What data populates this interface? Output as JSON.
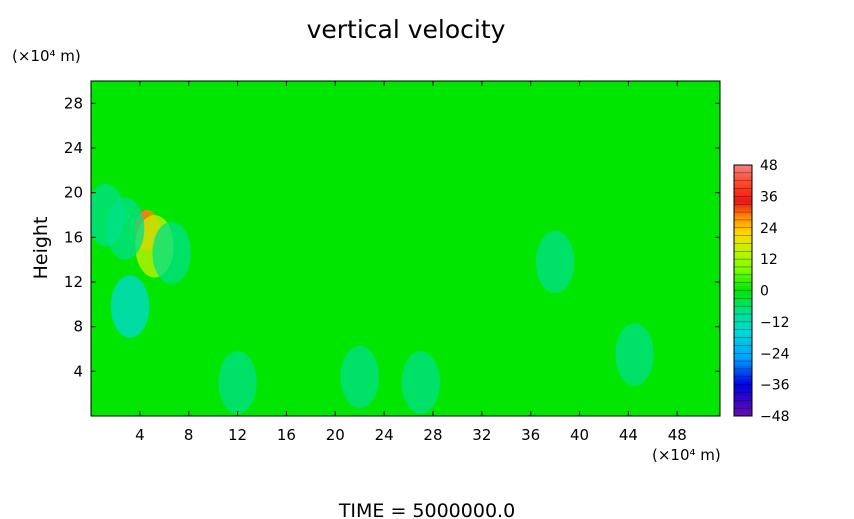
{
  "chart_data": {
    "type": "heatmap",
    "title": "vertical velocity",
    "ylabel": "Height",
    "x_unit": "(×10⁴ m)",
    "y_unit": "(×10⁴ m)",
    "xlim": [
      0,
      51.5
    ],
    "ylim": [
      0,
      30
    ],
    "x_ticks": [
      4,
      8,
      12,
      16,
      20,
      24,
      28,
      32,
      36,
      40,
      44,
      48
    ],
    "y_ticks": [
      4,
      8,
      12,
      16,
      20,
      24,
      28
    ],
    "colorbar": {
      "ticks": [
        48,
        36,
        24,
        12,
        0,
        -12,
        -24,
        -36,
        -48
      ],
      "range": [
        -48,
        48
      ],
      "stops": [
        {
          "v": 48,
          "color": "#f08080"
        },
        {
          "v": 40,
          "color": "#ff4020"
        },
        {
          "v": 34,
          "color": "#e81818"
        },
        {
          "v": 28,
          "color": "#ff8c00"
        },
        {
          "v": 22,
          "color": "#ffd700"
        },
        {
          "v": 16,
          "color": "#c8f000"
        },
        {
          "v": 8,
          "color": "#7cfc00"
        },
        {
          "v": 0,
          "color": "#00e600"
        },
        {
          "v": -8,
          "color": "#00e08a"
        },
        {
          "v": -16,
          "color": "#00d8d8"
        },
        {
          "v": -26,
          "color": "#00a0ff"
        },
        {
          "v": -36,
          "color": "#0000e0"
        },
        {
          "v": -48,
          "color": "#6a0dad"
        }
      ]
    },
    "background_value": 0,
    "features": [
      {
        "x": 4.3,
        "y": 17.4,
        "value": 38
      },
      {
        "x": 4.6,
        "y": 16.6,
        "value": 26
      },
      {
        "x": 5.2,
        "y": 15.2,
        "value": 14
      },
      {
        "x": 2.8,
        "y": 16.8,
        "value": -10
      },
      {
        "x": 1.2,
        "y": 18.0,
        "value": -8
      },
      {
        "x": 3.2,
        "y": 9.8,
        "value": -14
      },
      {
        "x": 6.6,
        "y": 14.6,
        "value": -8
      },
      {
        "x": 38.0,
        "y": 13.8,
        "value": -8
      },
      {
        "x": 27.0,
        "y": 3.0,
        "value": -6
      },
      {
        "x": 22.0,
        "y": 3.5,
        "value": -5
      },
      {
        "x": 44.5,
        "y": 5.5,
        "value": -5
      },
      {
        "x": 12.0,
        "y": 3.0,
        "value": -4
      }
    ],
    "caption": "TIME = 5000000.0"
  }
}
